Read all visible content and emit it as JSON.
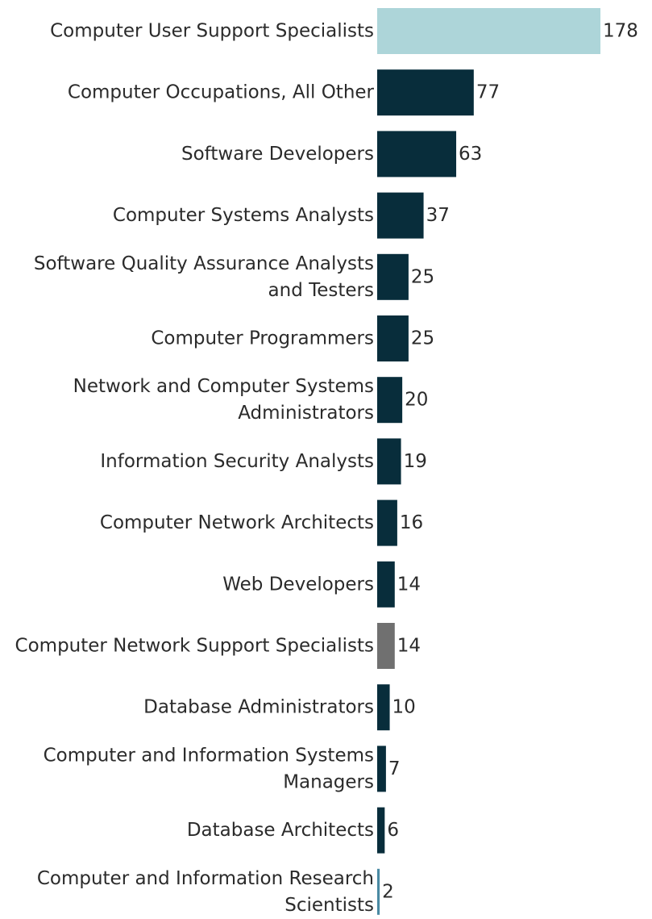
{
  "chart_data": {
    "type": "bar",
    "orientation": "horizontal",
    "categories": [
      "Computer User Support Specialists",
      "Computer Occupations, All Other",
      "Software Developers",
      "Computer Systems Analysts",
      "Software Quality Assurance Analysts and Testers",
      "Computer Programmers",
      "Network and Computer Systems Administrators",
      "Information Security Analysts",
      "Computer Network Architects",
      "Web Developers",
      "Computer Network Support Specialists",
      "Database Administrators",
      "Computer and Information Systems Managers",
      "Database Architects",
      "Computer and Information Research Scientists"
    ],
    "category_lines": [
      [
        "Computer User Support Specialists"
      ],
      [
        "Computer Occupations, All Other"
      ],
      [
        "Software Developers"
      ],
      [
        "Computer Systems Analysts"
      ],
      [
        "Software Quality Assurance Analysts",
        "and Testers"
      ],
      [
        "Computer Programmers"
      ],
      [
        "Network and Computer Systems",
        "Administrators"
      ],
      [
        "Information Security Analysts"
      ],
      [
        "Computer Network Architects"
      ],
      [
        "Web Developers"
      ],
      [
        "Computer Network Support Specialists"
      ],
      [
        "Database Administrators"
      ],
      [
        "Computer and Information Systems",
        "Managers"
      ],
      [
        "Database Architects"
      ],
      [
        "Computer and Information Research",
        "Scientists"
      ]
    ],
    "values": [
      178,
      77,
      63,
      37,
      25,
      25,
      20,
      19,
      16,
      14,
      14,
      10,
      7,
      6,
      2
    ],
    "value_labels": [
      "178",
      "77",
      "63",
      "37",
      "25",
      "25",
      "20",
      "19",
      "16",
      "14",
      "14",
      "10",
      "7",
      "6",
      "2"
    ],
    "bar_colors": [
      "#add5d9",
      "#082d3b",
      "#082d3b",
      "#082d3b",
      "#082d3b",
      "#082d3b",
      "#082d3b",
      "#082d3b",
      "#082d3b",
      "#082d3b",
      "#707070",
      "#082d3b",
      "#082d3b",
      "#082d3b",
      "#4a8aa3"
    ],
    "title": "",
    "xlabel": "",
    "ylabel": "",
    "xlim": [
      0,
      178
    ],
    "grid": false,
    "legend": "none"
  }
}
